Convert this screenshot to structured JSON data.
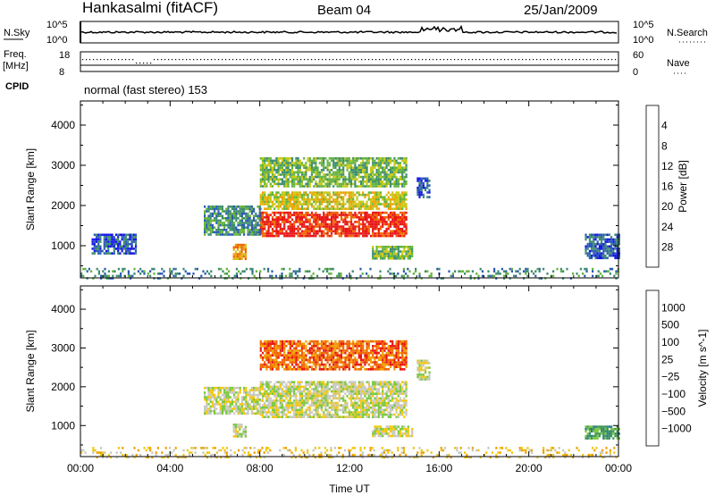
{
  "header": {
    "station": "Hankasalmi (fitACF)",
    "beam": "Beam 04",
    "date": "25/Jan/2009"
  },
  "noise_panel": {
    "left_label": "N.Sky",
    "right_label": "N.Search",
    "left_ticks": [
      "10^5",
      "10^0"
    ],
    "right_ticks": [
      "10^5",
      "10^0"
    ]
  },
  "freq_panel": {
    "left_label_line1": "Freq.",
    "left_label_line2": "[MHz]",
    "right_label": "Nave",
    "left_ticks": [
      "18",
      "8"
    ],
    "right_ticks": [
      "60",
      "0"
    ]
  },
  "cpid": {
    "label": "CPID",
    "text": "normal (fast stereo) 153"
  },
  "chart_data": [
    {
      "type": "heatmap",
      "title": "Power",
      "ylabel": "Slant Range [km]",
      "xlabel": "",
      "x_ticks": [
        "00:00",
        "04:00",
        "08:00",
        "12:00",
        "16:00",
        "20:00",
        "00:00"
      ],
      "y_ticks": [
        1000,
        2000,
        3000,
        4000
      ],
      "ylim": [
        200,
        4600
      ],
      "colorbar": {
        "label": "Power [dB]",
        "tick_labels": [
          "4",
          "8",
          "12",
          "16",
          "20",
          "24",
          "28"
        ],
        "colors": [
          "#1414e8",
          "#2a5ab4",
          "#3c8c6e",
          "#64b43c",
          "#c8c814",
          "#f0a000",
          "#f06400",
          "#e81414"
        ]
      },
      "regions": [
        {
          "t0": 8.0,
          "t1": 14.5,
          "r0": 1250,
          "r1": 1850,
          "level": 7
        },
        {
          "t0": 8.0,
          "t1": 14.5,
          "r0": 1900,
          "r1": 2350,
          "level": 4
        },
        {
          "t0": 8.0,
          "t1": 14.5,
          "r0": 2450,
          "r1": 3200,
          "level": 3
        },
        {
          "t0": 5.5,
          "t1": 8.0,
          "r0": 1300,
          "r1": 2000,
          "level": 2
        },
        {
          "t0": 6.8,
          "t1": 7.4,
          "r0": 700,
          "r1": 1050,
          "level": 5
        },
        {
          "t0": 13.0,
          "t1": 14.8,
          "r0": 700,
          "r1": 1000,
          "level": 3
        },
        {
          "t0": 15.0,
          "t1": 15.6,
          "r0": 2200,
          "r1": 2700,
          "level": 1
        },
        {
          "t0": 0.5,
          "t1": 2.5,
          "r0": 800,
          "r1": 1300,
          "level": 1
        },
        {
          "t0": 22.5,
          "t1": 24.0,
          "r0": 700,
          "r1": 1300,
          "level": 1
        },
        {
          "t0": 0.0,
          "t1": 24.0,
          "r0": 200,
          "r1": 450,
          "level": 2
        }
      ]
    },
    {
      "type": "heatmap",
      "title": "Velocity",
      "ylabel": "Slant Range [km]",
      "xlabel": "Time UT",
      "x_ticks": [
        "00:00",
        "04:00",
        "08:00",
        "12:00",
        "16:00",
        "20:00",
        "00:00"
      ],
      "y_ticks": [
        1000,
        2000,
        3000,
        4000
      ],
      "ylim": [
        200,
        4600
      ],
      "colorbar": {
        "label": "Velocity [m s^-1]",
        "tick_labels": [
          "1000",
          "500",
          "100",
          "25",
          "−25",
          "−100",
          "−500",
          "−1000"
        ],
        "colors": [
          "#1e46c8",
          "#2a7a8c",
          "#3c9650",
          "#78c83c",
          "#c8c8c0",
          "#f0c814",
          "#f0a000",
          "#f06400",
          "#e81414"
        ]
      },
      "regions": [
        {
          "t0": 8.0,
          "t1": 14.5,
          "r0": 1200,
          "r1": 2150,
          "level": 4
        },
        {
          "t0": 5.5,
          "t1": 8.0,
          "r0": 1300,
          "r1": 2000,
          "level": 4
        },
        {
          "t0": 8.0,
          "t1": 14.5,
          "r0": 2450,
          "r1": 3200,
          "level": 7
        },
        {
          "t0": 6.8,
          "t1": 7.4,
          "r0": 700,
          "r1": 1050,
          "level": 4
        },
        {
          "t0": 13.0,
          "t1": 14.8,
          "r0": 750,
          "r1": 1000,
          "level": 4
        },
        {
          "t0": 15.0,
          "t1": 15.6,
          "r0": 2200,
          "r1": 2700,
          "level": 4
        },
        {
          "t0": 22.5,
          "t1": 24.0,
          "r0": 700,
          "r1": 1000,
          "level": 2
        },
        {
          "t0": 0.0,
          "t1": 24.0,
          "r0": 200,
          "r1": 450,
          "level": 5
        }
      ]
    }
  ]
}
